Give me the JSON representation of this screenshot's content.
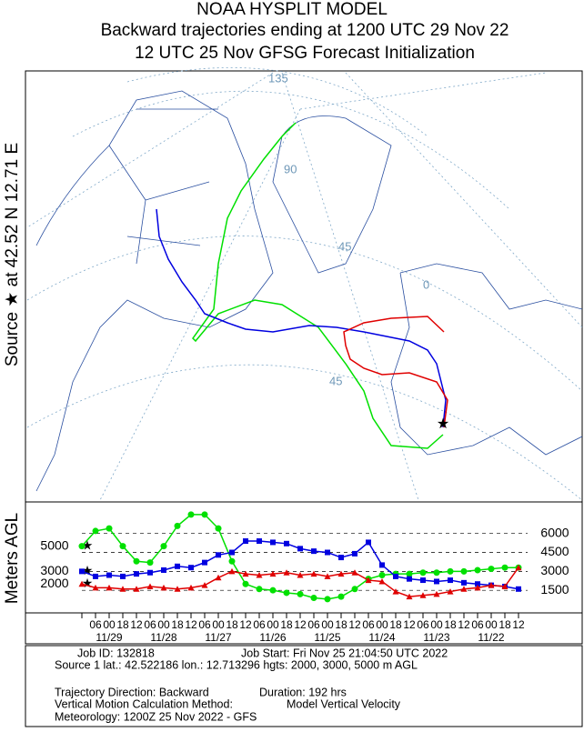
{
  "header": {
    "line1": "NOAA HYSPLIT MODEL",
    "line2": "Backward trajectories ending at 1200 UTC 29 Nov 22",
    "line3": "12 UTC 25 Nov    GFSG  Forecast Initialization"
  },
  "map": {
    "side_label": "Source ★ at    42.52 N    12.71 E",
    "grid_labels": [
      "135",
      "90",
      "45",
      "0",
      "45"
    ]
  },
  "chart_data": {
    "type": "line",
    "y_label": "Meters AGL",
    "categories": [
      null,
      "06",
      "00",
      "18",
      "12",
      "06",
      "00",
      "18",
      "12",
      "06",
      "00",
      "18",
      "12",
      "06",
      "00",
      "18",
      "12",
      "06",
      "00",
      "18",
      "12",
      "06",
      "00",
      "18",
      "12",
      "06",
      "00",
      "18",
      "12",
      "06",
      "00",
      "18",
      "12"
    ],
    "date_labels": [
      "11/29",
      "11/28",
      "11/27",
      "11/26",
      "11/25",
      "11/24",
      "11/23",
      "11/22"
    ],
    "start_heights": [
      5000,
      3000,
      2000
    ],
    "ylim": [
      0,
      8500
    ],
    "yticks": [
      1500,
      3000,
      4500,
      6000
    ],
    "grid": true,
    "series": [
      {
        "name": "5000",
        "color": "#00e000",
        "marker": "circle",
        "values": [
          5000,
          6200,
          6400,
          5000,
          3800,
          3700,
          5000,
          6600,
          7500,
          7500,
          6400,
          3800,
          2000,
          1600,
          1500,
          1300,
          1200,
          900,
          800,
          1000,
          1600,
          2400,
          2700,
          2800,
          2800,
          2900,
          2900,
          3000,
          3000,
          3100,
          3200,
          3300,
          3300
        ]
      },
      {
        "name": "3000",
        "color": "#0000e0",
        "marker": "square",
        "values": [
          3000,
          2600,
          2700,
          2600,
          2800,
          2900,
          3100,
          3400,
          3300,
          3700,
          4300,
          4500,
          5400,
          5400,
          5300,
          5200,
          4800,
          4600,
          4500,
          4100,
          4400,
          5300,
          3500,
          2600,
          2400,
          2300,
          2200,
          2300,
          2100,
          2000,
          1900,
          1800,
          1600
        ]
      },
      {
        "name": "2000",
        "color": "#e00000",
        "marker": "triangle",
        "values": [
          2000,
          1700,
          1700,
          1600,
          1600,
          1800,
          1700,
          1600,
          1700,
          1900,
          2500,
          3000,
          2800,
          2700,
          2800,
          2900,
          2700,
          2800,
          2600,
          2800,
          2900,
          2300,
          2200,
          1400,
          1000,
          1100,
          1200,
          1400,
          1600,
          1700,
          1900,
          1800,
          3300
        ]
      }
    ]
  },
  "footer": {
    "job_id": "Job ID: 132818",
    "job_start": "Job Start: Fri Nov 25 21:04:50 UTC 2022",
    "source": "Source 1 lat.: 42.522186  lon.: 12.713296  hgts: 2000, 3000, 5000 m AGL",
    "direction": "Trajectory Direction: Backward",
    "duration": "Duration: 192 hrs",
    "vertical_label": "Vertical Motion Calculation Method:",
    "vertical_value": "Model Vertical Velocity",
    "meteorology": "Meteorology: 1200Z 25 Nov 2022 - GFS"
  }
}
